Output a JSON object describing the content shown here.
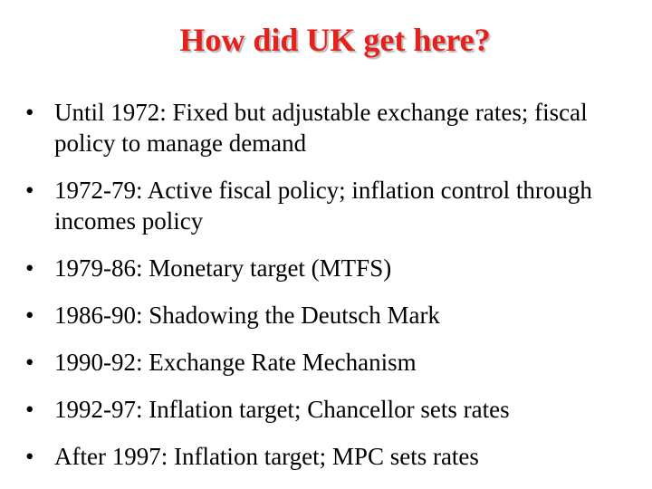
{
  "slide": {
    "title": "How did UK get here?",
    "bullet_symbol": "•",
    "bullets": [
      "Until 1972: Fixed but adjustable exchange rates; fiscal policy to manage demand",
      "1972-79: Active fiscal policy; inflation control through incomes policy",
      "1979-86: Monetary target (MTFS)",
      "1986-90: Shadowing the Deutsch Mark",
      "1990-92: Exchange Rate Mechanism",
      "1992-97: Inflation target; Chancellor sets rates",
      "After 1997: Inflation target; MPC sets rates"
    ]
  },
  "colors": {
    "title": "#e8201b",
    "text": "#000000",
    "background": "#ffffff"
  }
}
